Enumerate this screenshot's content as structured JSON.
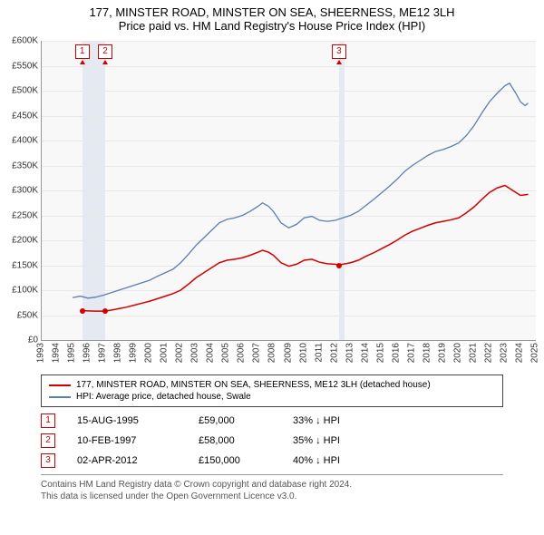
{
  "title_line1": "177, MINSTER ROAD, MINSTER ON SEA, SHEERNESS, ME12 3LH",
  "title_line2": "Price paid vs. HM Land Registry's House Price Index (HPI)",
  "chart": {
    "type": "line",
    "background_color": "#f8f8f8",
    "grid_color": "#e8e8e8",
    "axis_color": "#999999",
    "x_years": [
      1993,
      1994,
      1995,
      1996,
      1997,
      1998,
      1999,
      2000,
      2001,
      2002,
      2003,
      2004,
      2005,
      2006,
      2007,
      2008,
      2009,
      2010,
      2011,
      2012,
      2013,
      2014,
      2015,
      2016,
      2017,
      2018,
      2019,
      2020,
      2021,
      2022,
      2023,
      2024,
      2025
    ],
    "x_min": 1993,
    "x_max": 2025,
    "y_min": 0,
    "y_max": 600000,
    "y_tick_step": 50000,
    "y_tick_labels": [
      "£0",
      "£50K",
      "£100K",
      "£150K",
      "£200K",
      "£250K",
      "£300K",
      "£350K",
      "£400K",
      "£450K",
      "£500K",
      "£550K",
      "£600K"
    ],
    "label_fontsize": 10,
    "band_color": "#d8e0ec",
    "series": [
      {
        "name": "hpi",
        "color": "#5b7fb0",
        "width": 1.3,
        "points": [
          [
            1995.0,
            85000
          ],
          [
            1995.5,
            88000
          ],
          [
            1996.0,
            84000
          ],
          [
            1996.5,
            86000
          ],
          [
            1997.0,
            90000
          ],
          [
            1997.5,
            95000
          ],
          [
            1998.0,
            100000
          ],
          [
            1998.5,
            105000
          ],
          [
            1999.0,
            110000
          ],
          [
            1999.5,
            115000
          ],
          [
            2000.0,
            120000
          ],
          [
            2000.5,
            128000
          ],
          [
            2001.0,
            135000
          ],
          [
            2001.5,
            142000
          ],
          [
            2002.0,
            155000
          ],
          [
            2002.5,
            172000
          ],
          [
            2003.0,
            190000
          ],
          [
            2003.5,
            205000
          ],
          [
            2004.0,
            220000
          ],
          [
            2004.5,
            235000
          ],
          [
            2005.0,
            242000
          ],
          [
            2005.5,
            245000
          ],
          [
            2006.0,
            250000
          ],
          [
            2006.5,
            258000
          ],
          [
            2007.0,
            268000
          ],
          [
            2007.3,
            275000
          ],
          [
            2007.7,
            268000
          ],
          [
            2008.0,
            258000
          ],
          [
            2008.5,
            235000
          ],
          [
            2009.0,
            225000
          ],
          [
            2009.5,
            232000
          ],
          [
            2010.0,
            245000
          ],
          [
            2010.5,
            248000
          ],
          [
            2011.0,
            240000
          ],
          [
            2011.5,
            238000
          ],
          [
            2012.0,
            240000
          ],
          [
            2012.5,
            245000
          ],
          [
            2013.0,
            250000
          ],
          [
            2013.5,
            258000
          ],
          [
            2014.0,
            270000
          ],
          [
            2014.5,
            282000
          ],
          [
            2015.0,
            295000
          ],
          [
            2015.5,
            308000
          ],
          [
            2016.0,
            322000
          ],
          [
            2016.5,
            338000
          ],
          [
            2017.0,
            350000
          ],
          [
            2017.5,
            360000
          ],
          [
            2018.0,
            370000
          ],
          [
            2018.5,
            378000
          ],
          [
            2019.0,
            382000
          ],
          [
            2019.5,
            388000
          ],
          [
            2020.0,
            395000
          ],
          [
            2020.5,
            410000
          ],
          [
            2021.0,
            430000
          ],
          [
            2021.5,
            455000
          ],
          [
            2022.0,
            478000
          ],
          [
            2022.5,
            495000
          ],
          [
            2023.0,
            510000
          ],
          [
            2023.3,
            515000
          ],
          [
            2023.7,
            495000
          ],
          [
            2024.0,
            478000
          ],
          [
            2024.3,
            470000
          ],
          [
            2024.5,
            475000
          ]
        ]
      },
      {
        "name": "price_paid",
        "color": "#d00000",
        "width": 1.5,
        "points": [
          [
            1995.62,
            59000
          ],
          [
            1996.0,
            58500
          ],
          [
            1996.5,
            58000
          ],
          [
            1997.11,
            58000
          ],
          [
            1997.5,
            60000
          ],
          [
            1998.0,
            63000
          ],
          [
            1998.5,
            66000
          ],
          [
            1999.0,
            70000
          ],
          [
            1999.5,
            74000
          ],
          [
            2000.0,
            78000
          ],
          [
            2000.5,
            83000
          ],
          [
            2001.0,
            88000
          ],
          [
            2001.5,
            93000
          ],
          [
            2002.0,
            100000
          ],
          [
            2002.5,
            112000
          ],
          [
            2003.0,
            125000
          ],
          [
            2003.5,
            135000
          ],
          [
            2004.0,
            145000
          ],
          [
            2004.5,
            155000
          ],
          [
            2005.0,
            160000
          ],
          [
            2005.5,
            162000
          ],
          [
            2006.0,
            165000
          ],
          [
            2006.5,
            170000
          ],
          [
            2007.0,
            176000
          ],
          [
            2007.3,
            180000
          ],
          [
            2007.7,
            176000
          ],
          [
            2008.0,
            170000
          ],
          [
            2008.5,
            155000
          ],
          [
            2009.0,
            148000
          ],
          [
            2009.5,
            152000
          ],
          [
            2010.0,
            160000
          ],
          [
            2010.5,
            162000
          ],
          [
            2011.0,
            156000
          ],
          [
            2011.5,
            153000
          ],
          [
            2012.0,
            152000
          ],
          [
            2012.25,
            150000
          ],
          [
            2012.5,
            152000
          ],
          [
            2013.0,
            155000
          ],
          [
            2013.5,
            160000
          ],
          [
            2014.0,
            168000
          ],
          [
            2014.5,
            175000
          ],
          [
            2015.0,
            183000
          ],
          [
            2015.5,
            191000
          ],
          [
            2016.0,
            200000
          ],
          [
            2016.5,
            210000
          ],
          [
            2017.0,
            218000
          ],
          [
            2017.5,
            224000
          ],
          [
            2018.0,
            230000
          ],
          [
            2018.5,
            235000
          ],
          [
            2019.0,
            238000
          ],
          [
            2019.5,
            241000
          ],
          [
            2020.0,
            245000
          ],
          [
            2020.5,
            255000
          ],
          [
            2021.0,
            267000
          ],
          [
            2021.5,
            282000
          ],
          [
            2022.0,
            296000
          ],
          [
            2022.5,
            305000
          ],
          [
            2023.0,
            310000
          ],
          [
            2023.5,
            300000
          ],
          [
            2024.0,
            290000
          ],
          [
            2024.5,
            292000
          ]
        ]
      }
    ],
    "transactions": [
      {
        "n": "1",
        "year": 1995.62,
        "price": 59000
      },
      {
        "n": "2",
        "year": 1997.11,
        "price": 58000
      },
      {
        "n": "3",
        "year": 2012.25,
        "price": 150000
      }
    ]
  },
  "legend": [
    {
      "color": "#d00000",
      "label": "177, MINSTER ROAD, MINSTER ON SEA, SHEERNESS, ME12 3LH (detached house)"
    },
    {
      "color": "#5b7fb0",
      "label": "HPI: Average price, detached house, Swale"
    }
  ],
  "transactions_table": [
    {
      "n": "1",
      "date": "15-AUG-1995",
      "price": "£59,000",
      "pct": "33% ↓ HPI"
    },
    {
      "n": "2",
      "date": "10-FEB-1997",
      "price": "£58,000",
      "pct": "35% ↓ HPI"
    },
    {
      "n": "3",
      "date": "02-APR-2012",
      "price": "£150,000",
      "pct": "40% ↓ HPI"
    }
  ],
  "footer_line1": "Contains HM Land Registry data © Crown copyright and database right 2024.",
  "footer_line2": "This data is licensed under the Open Government Licence v3.0."
}
